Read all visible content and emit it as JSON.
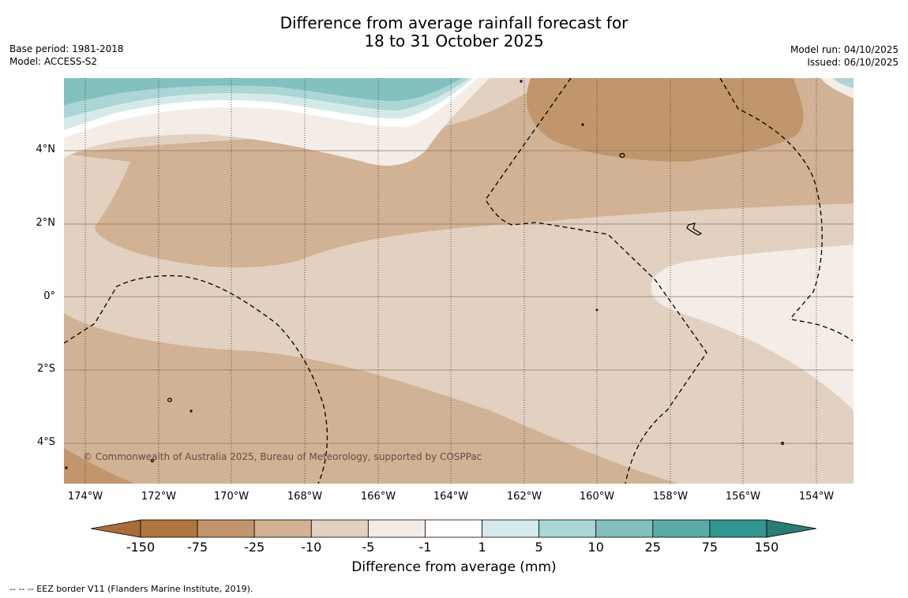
{
  "title": {
    "line1": "Difference from average rainfall forecast for",
    "line2": "18 to 31 October 2025"
  },
  "meta_left": {
    "base_period": "Base period: 1981-2018",
    "model": "Model: ACCESS-S2"
  },
  "meta_right": {
    "model_run": "Model run: 04/10/2025",
    "issued": "Issued: 06/10/2025"
  },
  "map": {
    "lat_labels": [
      "4°N",
      "2°N",
      "0°",
      "2°S",
      "4°S"
    ],
    "lon_labels": [
      "174°W",
      "172°W",
      "170°W",
      "168°W",
      "166°W",
      "164°W",
      "162°W",
      "160°W",
      "158°W",
      "156°W",
      "154°W"
    ],
    "copyright": "© Commonwealth of Australia 2025, Bureau of Meteorology, supported by COSPPac"
  },
  "colorbar": {
    "title": "Difference from average (mm)",
    "tick_labels": [
      "-150",
      "-75",
      "-25",
      "-10",
      "-5",
      "-1",
      "1",
      "5",
      "10",
      "25",
      "75",
      "150"
    ],
    "colors": [
      "#a76d3a",
      "#b0763f",
      "#c1966c",
      "#d2b294",
      "#e2d0c0",
      "#f4ece7",
      "#ffffff",
      "#d4eae9",
      "#abd6d5",
      "#82c1be",
      "#58aba7",
      "#32958f",
      "#2a7c77"
    ]
  },
  "footer": {
    "eez_note": "--  --  -- EEZ border V11 (Flanders Marine Institute, 2019)."
  }
}
